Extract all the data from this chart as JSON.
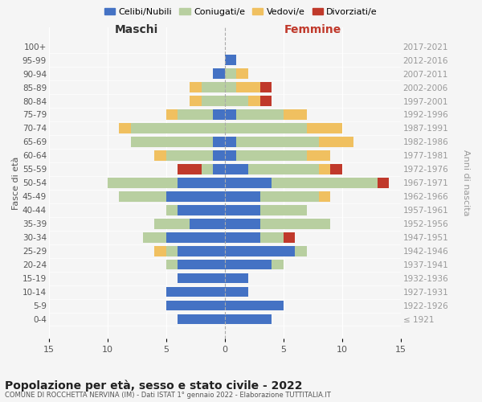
{
  "age_groups": [
    "100+",
    "95-99",
    "90-94",
    "85-89",
    "80-84",
    "75-79",
    "70-74",
    "65-69",
    "60-64",
    "55-59",
    "50-54",
    "45-49",
    "40-44",
    "35-39",
    "30-34",
    "25-29",
    "20-24",
    "15-19",
    "10-14",
    "5-9",
    "0-4"
  ],
  "birth_years": [
    "≤ 1921",
    "1922-1926",
    "1927-1931",
    "1932-1936",
    "1937-1941",
    "1942-1946",
    "1947-1951",
    "1952-1956",
    "1957-1961",
    "1962-1966",
    "1967-1971",
    "1972-1976",
    "1977-1981",
    "1982-1986",
    "1987-1991",
    "1992-1996",
    "1997-2001",
    "2002-2006",
    "2007-2011",
    "2012-2016",
    "2017-2021"
  ],
  "colors": {
    "celibi": "#4472c4",
    "coniugati": "#b8cfa0",
    "vedovi": "#f0c060",
    "divorziati": "#c0392b"
  },
  "maschi": {
    "celibi": [
      0,
      0,
      1,
      0,
      0,
      1,
      0,
      1,
      1,
      1,
      4,
      5,
      4,
      3,
      5,
      4,
      4,
      4,
      5,
      5,
      4
    ],
    "coniugati": [
      0,
      0,
      0,
      2,
      2,
      3,
      8,
      7,
      4,
      1,
      6,
      4,
      1,
      3,
      2,
      1,
      1,
      0,
      0,
      0,
      0
    ],
    "vedovi": [
      0,
      0,
      0,
      1,
      1,
      1,
      1,
      0,
      1,
      0,
      0,
      0,
      0,
      0,
      0,
      1,
      0,
      0,
      0,
      0,
      0
    ],
    "divorziati": [
      0,
      0,
      0,
      0,
      0,
      0,
      0,
      0,
      0,
      2,
      0,
      0,
      0,
      0,
      0,
      0,
      0,
      0,
      0,
      0,
      0
    ]
  },
  "femmine": {
    "celibi": [
      0,
      1,
      0,
      0,
      0,
      1,
      0,
      1,
      1,
      2,
      4,
      3,
      3,
      3,
      3,
      6,
      4,
      2,
      2,
      5,
      4
    ],
    "coniugati": [
      0,
      0,
      1,
      1,
      2,
      4,
      7,
      7,
      6,
      6,
      9,
      5,
      4,
      6,
      2,
      1,
      1,
      0,
      0,
      0,
      0
    ],
    "vedovi": [
      0,
      0,
      1,
      2,
      1,
      2,
      3,
      3,
      2,
      1,
      0,
      1,
      0,
      0,
      0,
      0,
      0,
      0,
      0,
      0,
      0
    ],
    "divorziati": [
      0,
      0,
      0,
      1,
      1,
      0,
      0,
      0,
      0,
      1,
      1,
      0,
      0,
      0,
      1,
      0,
      0,
      0,
      0,
      0,
      0
    ]
  },
  "xlim": 15,
  "title": "Popolazione per età, sesso e stato civile - 2022",
  "subtitle": "COMUNE DI ROCCHETTA NERVINA (IM) - Dati ISTAT 1° gennaio 2022 - Elaborazione TUTTITALIA.IT",
  "ylabel_left": "Fasce di età",
  "ylabel_right": "Anni di nascita",
  "label_maschi": "Maschi",
  "label_femmine": "Femmine",
  "label_maschi_color": "#333333",
  "label_femmine_color": "#c0392b",
  "legend_labels": [
    "Celibi/Nubili",
    "Coniugati/e",
    "Vedovi/e",
    "Divorziati/e"
  ],
  "background_color": "#f5f5f5",
  "grid_color": "#ffffff",
  "axis_label_color": "#555555",
  "right_label_color": "#999999",
  "tick_color": "#555555"
}
